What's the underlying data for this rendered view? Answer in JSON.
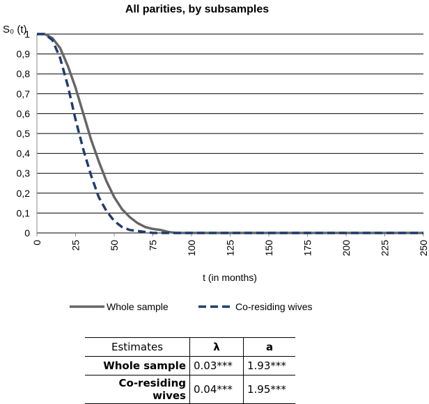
{
  "chart_data": {
    "type": "line",
    "title": "All parities, by subsamples",
    "y_label": "S₀ (t)",
    "x_label": "t (in months)",
    "x": [
      0,
      5,
      10,
      15,
      20,
      25,
      30,
      35,
      40,
      45,
      50,
      55,
      60,
      65,
      70,
      75,
      80,
      85,
      90,
      100,
      150,
      200,
      250
    ],
    "series": [
      {
        "name": "Whole sample",
        "color": "#666666",
        "dashed": false,
        "values": [
          1,
          1,
          0.98,
          0.93,
          0.84,
          0.73,
          0.6,
          0.47,
          0.36,
          0.26,
          0.18,
          0.12,
          0.08,
          0.05,
          0.03,
          0.02,
          0.015,
          0.005,
          0,
          0,
          0,
          0,
          0
        ]
      },
      {
        "name": "Co-residing wives",
        "color": "#1f3d6e",
        "dashed": true,
        "values": [
          1,
          1,
          0.97,
          0.88,
          0.74,
          0.57,
          0.42,
          0.29,
          0.18,
          0.11,
          0.06,
          0.03,
          0.015,
          0.01,
          0.005,
          0,
          0,
          0,
          0,
          0,
          0,
          0,
          0
        ]
      }
    ],
    "xlim": [
      0,
      250
    ],
    "xticks": [
      0,
      25,
      50,
      75,
      100,
      125,
      150,
      175,
      200,
      225,
      250
    ],
    "ylim": [
      0,
      1
    ],
    "yticks": [
      0,
      {
        "value": 0.1,
        "label": "0,1"
      },
      {
        "value": 0.2,
        "label": "0,2"
      },
      {
        "value": 0.3,
        "label": "0,3"
      },
      {
        "value": 0.4,
        "label": "0,4"
      },
      {
        "value": 0.5,
        "label": "0,5"
      },
      {
        "value": 0.6,
        "label": "0,6"
      },
      {
        "value": 0.7,
        "label": "0,7"
      },
      {
        "value": 0.8,
        "label": "0,8"
      },
      {
        "value": 0.9,
        "label": "0,9"
      },
      1
    ],
    "grid": true,
    "legend": "bottom"
  },
  "table": {
    "header": [
      "Estimates",
      "λ",
      "a"
    ],
    "rows": [
      [
        "Whole sample",
        "0.03***",
        "1.93***"
      ],
      [
        "Co-residing wives",
        "0.04***",
        "1.95***"
      ]
    ]
  }
}
